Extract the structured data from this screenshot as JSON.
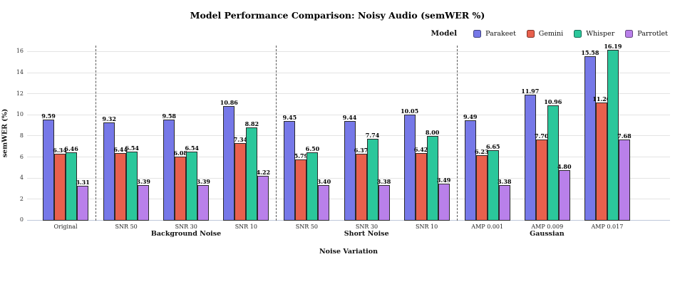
{
  "chart_data": {
    "type": "bar",
    "title": "Model Performance Comparison: Noisy Audio (semWER %)",
    "xlabel": "Noise Variation",
    "ylabel": "semWER (%)",
    "ylim": [
      0,
      16.6
    ],
    "yticks": [
      0,
      2,
      4,
      6,
      8,
      10,
      12,
      14,
      16
    ],
    "grid": true,
    "legend_title": "Model",
    "legend_position": "top-right",
    "categories": [
      "Original",
      "SNR 50",
      "SNR 30",
      "SNR 10",
      "SNR 50",
      "SNR 30",
      "SNR 10",
      "AMP 0.001",
      "AMP 0.009",
      "AMP 0.017"
    ],
    "groups": [
      {
        "label": "",
        "start": 0,
        "end": 0
      },
      {
        "label": "Background Noise",
        "start": 1,
        "end": 3
      },
      {
        "label": "Short Noise",
        "start": 4,
        "end": 6
      },
      {
        "label": "Gaussian",
        "start": 7,
        "end": 9
      }
    ],
    "series": [
      {
        "name": "Parakeet",
        "color": "#7678e8",
        "values": [
          9.59,
          9.32,
          9.58,
          10.86,
          9.45,
          9.44,
          10.05,
          9.49,
          11.97,
          15.58
        ]
      },
      {
        "name": "Gemini",
        "color": "#e8604d",
        "values": [
          6.34,
          6.44,
          6.08,
          7.34,
          5.79,
          6.37,
          6.42,
          6.23,
          7.7,
          11.2
        ]
      },
      {
        "name": "Whisper",
        "color": "#2bc79b",
        "values": [
          6.46,
          6.54,
          6.54,
          8.82,
          6.5,
          7.74,
          8.0,
          6.65,
          10.96,
          16.19
        ]
      },
      {
        "name": "Parrotlet",
        "color": "#b980ea",
        "values": [
          3.31,
          3.39,
          3.39,
          4.22,
          3.4,
          3.38,
          3.49,
          3.38,
          4.8,
          7.68
        ]
      }
    ],
    "colors": {
      "bar_edge": "#2b2b2b",
      "gridline": "#e4e4e4",
      "axis_line": "#bfc8da",
      "separator": "#595959"
    }
  }
}
